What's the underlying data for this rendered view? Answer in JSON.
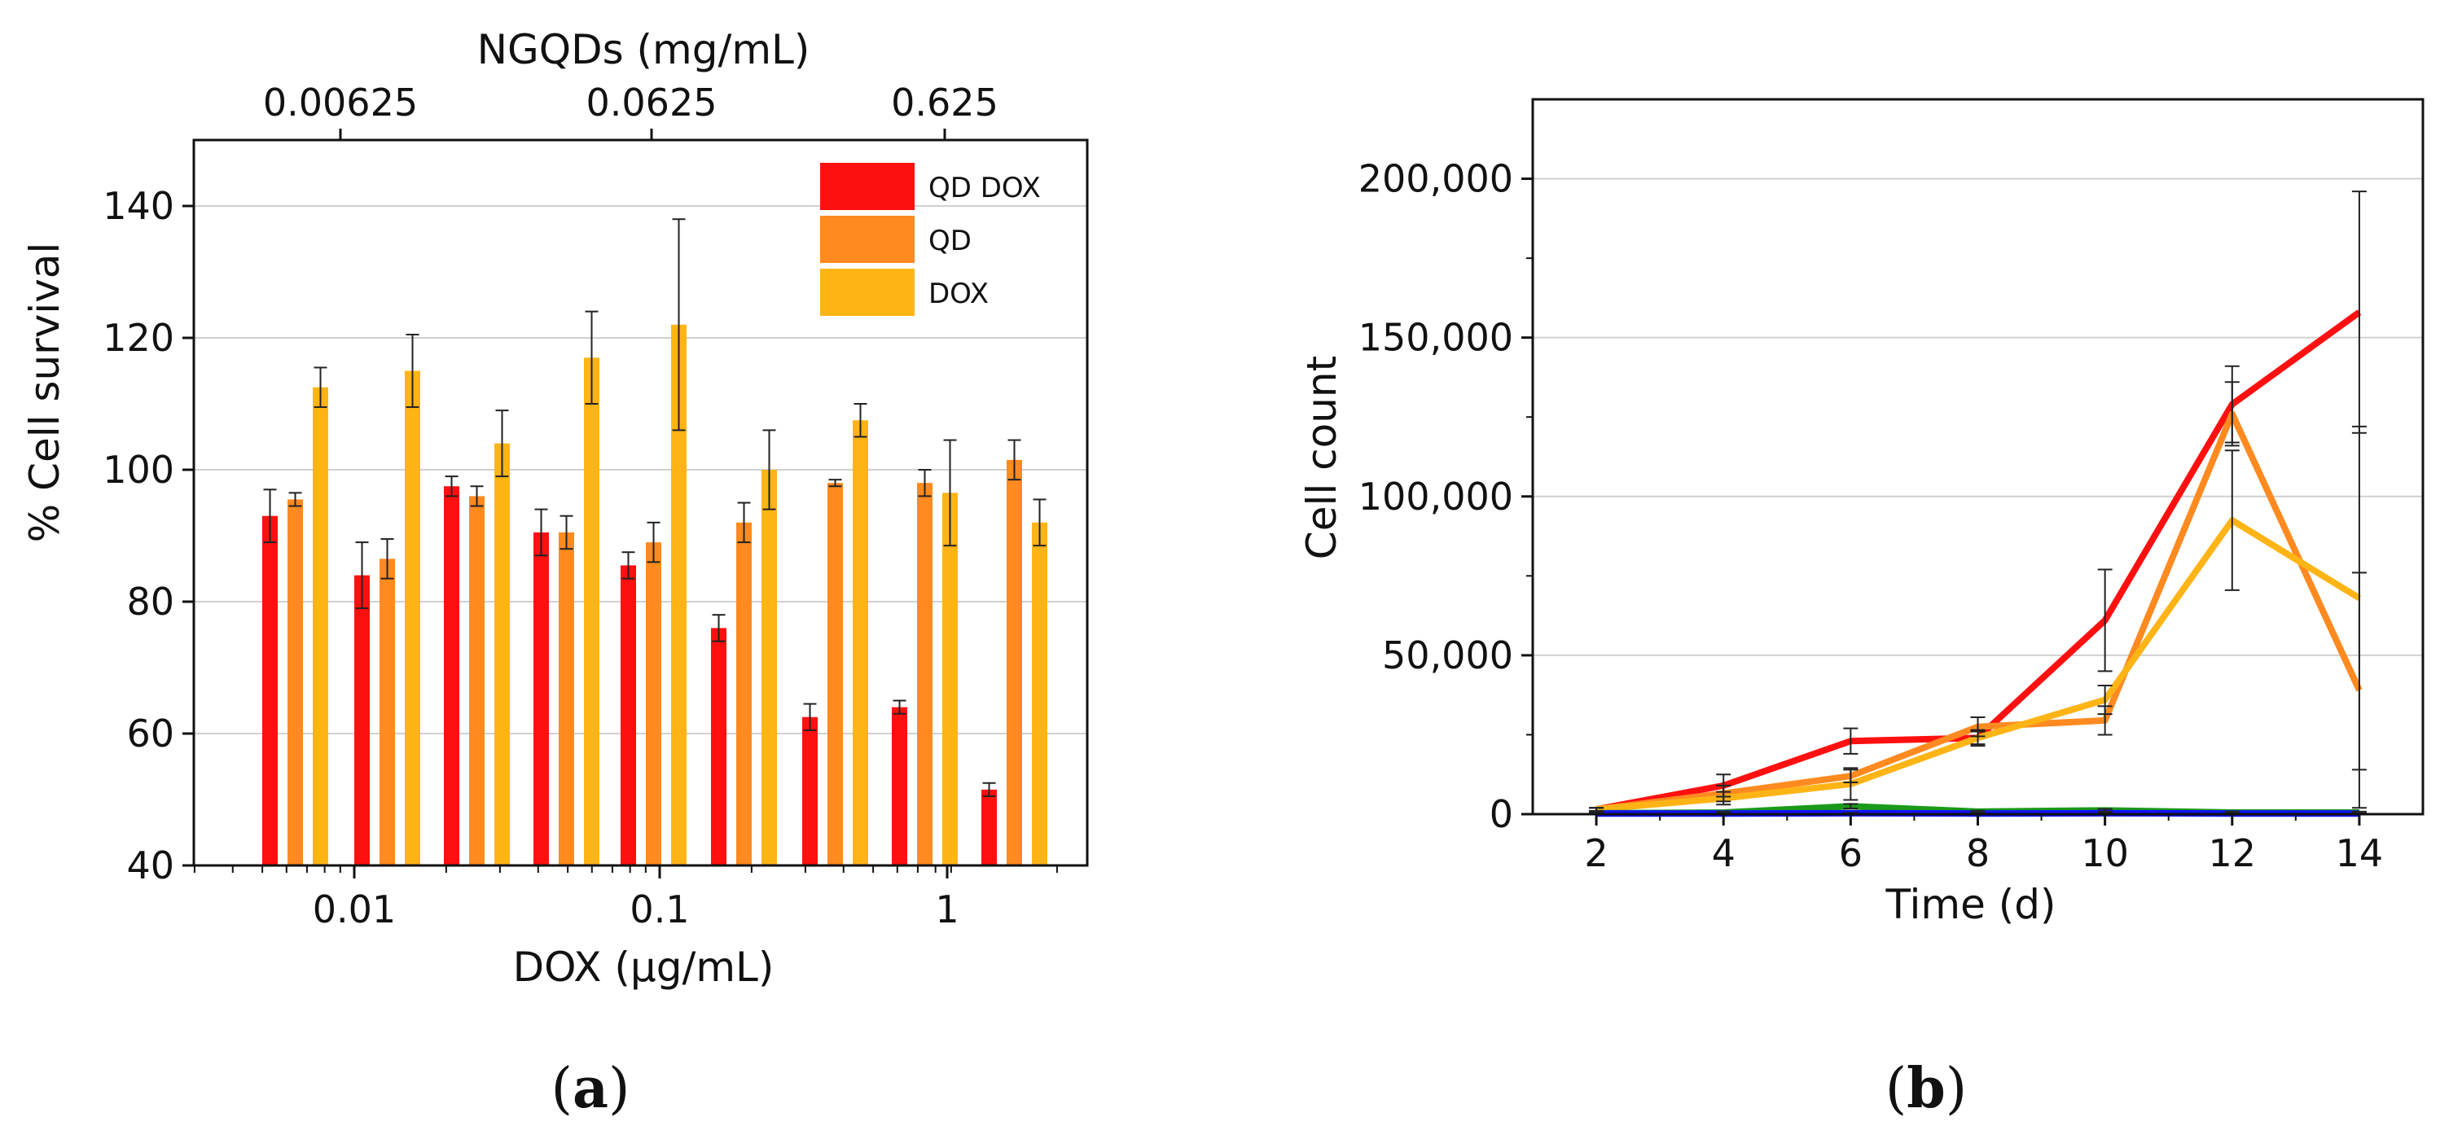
{
  "colors": {
    "qd_dox": "#ff1010",
    "qd": "#ff8a20",
    "dox": "#ffb416",
    "green": "#1a9a1a",
    "blue": "#1010ff"
  },
  "panel_a": {
    "label_open": "(",
    "label_letter": "a",
    "label_close": ")"
  },
  "panel_b": {
    "label_open": "(",
    "label_letter": "b",
    "label_close": ")"
  },
  "chart_data": [
    {
      "type": "bar",
      "title": "",
      "top_axis_title": "NGQDs (mg/mL)",
      "top_ticks": [
        "0.00625",
        "0.0625",
        "0.625"
      ],
      "xlabel": "DOX (µg/mL)",
      "x_ticks": [
        "0.01",
        "0.1",
        "1"
      ],
      "ylabel": "% Cell survival",
      "ylim": [
        40,
        150
      ],
      "y_ticks": [
        40,
        60,
        80,
        100,
        120,
        140
      ],
      "grid": true,
      "legend_position": "top-right",
      "series": [
        {
          "name": "QD DOX",
          "color": "#ff1010",
          "values": [
            93,
            84,
            97.5,
            90.5,
            85.5,
            76,
            62.5,
            64,
            51.5
          ],
          "errors": [
            4,
            5,
            1.5,
            3.5,
            2,
            2,
            2,
            1,
            1
          ]
        },
        {
          "name": "QD",
          "color": "#ff8a20",
          "values": [
            95.5,
            86.5,
            96,
            90.5,
            89,
            92,
            98,
            98,
            101.5
          ],
          "errors": [
            1,
            3,
            1.5,
            2.5,
            3,
            3,
            0.5,
            2,
            3
          ]
        },
        {
          "name": "DOX",
          "color": "#ffb416",
          "values": [
            112.5,
            115,
            104,
            117,
            122,
            100,
            107.5,
            96.5,
            92
          ],
          "errors": [
            3,
            5.5,
            5,
            7,
            16,
            6,
            2.5,
            8,
            3.5
          ]
        }
      ]
    },
    {
      "type": "line",
      "title": "",
      "xlabel": "Time (d)",
      "ylabel": "Cell count",
      "x": [
        2,
        4,
        6,
        8,
        10,
        12,
        14
      ],
      "x_ticks": [
        "2",
        "4",
        "6",
        "8",
        "10",
        "12",
        "14"
      ],
      "xlim": [
        1,
        15
      ],
      "ylim": [
        0,
        225000
      ],
      "y_ticks": [
        "0",
        "50,000",
        "100,000",
        "150,000",
        "200,000"
      ],
      "y_tick_values": [
        0,
        50000,
        100000,
        150000,
        200000
      ],
      "grid": true,
      "series": [
        {
          "name": "red",
          "color": "#ff1010",
          "values": [
            1500,
            9000,
            23000,
            24000,
            61000,
            129000,
            158000
          ],
          "errors": [
            500,
            3500,
            4000,
            2500,
            16000,
            12000,
            38000
          ]
        },
        {
          "name": "orange",
          "color": "#ff8a20",
          "values": [
            1500,
            6500,
            12000,
            27500,
            29500,
            126000,
            39000
          ],
          "errors": [
            500,
            2500,
            2000,
            3000,
            4500,
            10000,
            37000
          ]
        },
        {
          "name": "yellow",
          "color": "#ffb416",
          "values": [
            1500,
            5000,
            9500,
            24000,
            36000,
            92500,
            68000
          ],
          "errors": [
            500,
            2000,
            5000,
            2000,
            4500,
            22000,
            54000
          ]
        },
        {
          "name": "green",
          "color": "#1a9a1a",
          "values": [
            300,
            500,
            2500,
            800,
            1200,
            500,
            500
          ],
          "errors": [
            200,
            300,
            700,
            300,
            400,
            300,
            300
          ]
        },
        {
          "name": "blue",
          "color": "#1010ff",
          "values": [
            200,
            200,
            300,
            200,
            300,
            200,
            200
          ],
          "errors": [
            100,
            100,
            100,
            100,
            100,
            100,
            100
          ]
        }
      ]
    }
  ]
}
